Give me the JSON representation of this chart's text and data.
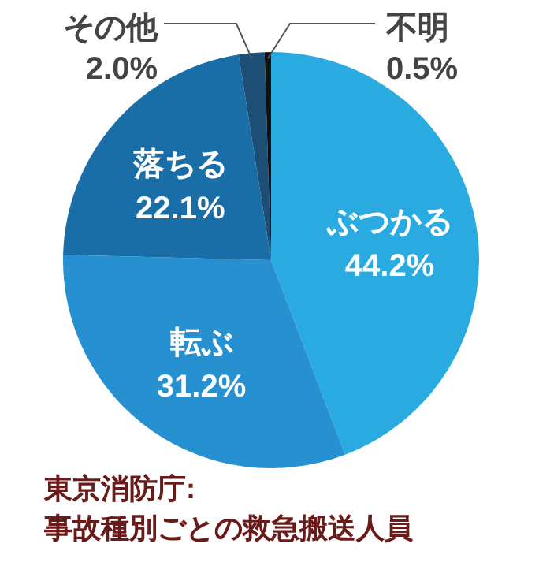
{
  "chart_data": {
    "type": "pie",
    "categories": [
      "ぶつかる",
      "転ぶ",
      "落ちる",
      "その他",
      "不明"
    ],
    "values": [
      44.2,
      31.2,
      22.1,
      2.0,
      0.5
    ],
    "colors": [
      "#29abe2",
      "#2690d0",
      "#1a6ea8",
      "#1d4e75",
      "#111111"
    ],
    "value_labels": [
      "44.2%",
      "31.2%",
      "22.1%",
      "2.0%",
      "0.5%"
    ],
    "annotations": [
      "東京消防庁:\n事故種別ごとの救急搬送人員"
    ]
  }
}
